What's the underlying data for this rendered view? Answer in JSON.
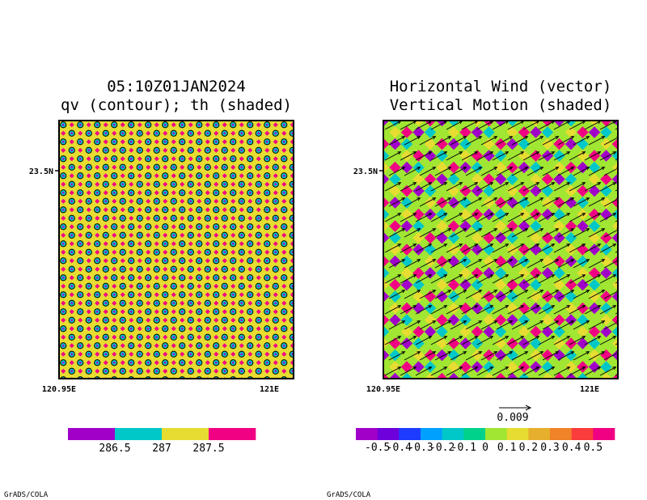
{
  "left_panel": {
    "title_line1": "05:10Z01JAN2024",
    "title_line2": "qv (contour); th (shaded)",
    "y_tick": "23.5N",
    "x_tick_left": "120.95E",
    "x_tick_right": "121E",
    "credit": "GrADS/COLA"
  },
  "right_panel": {
    "title_line1": "Horizontal Wind (vector)",
    "title_line2": "Vertical Motion (shaded)",
    "y_tick": "23.5N",
    "x_tick_left": "120.95E",
    "x_tick_right": "121E",
    "vector_ref_label": "0.009",
    "credit": "GrADS/COLA"
  },
  "colors": {
    "th_fill": "#e6dc32",
    "th_cold": "#a000c8",
    "th_mid": "#00c8c8",
    "th_hot": "#f00082",
    "w_palette": [
      "#a000c8",
      "#6e00dc",
      "#1e3cff",
      "#00a0ff",
      "#00c8c8",
      "#00d28c",
      "#a0e632",
      "#e6dc32",
      "#e6af2d",
      "#f08228",
      "#fa3c3c",
      "#f00082"
    ]
  },
  "chart_data": [
    {
      "type": "heatmap",
      "description_fields": "shaded",
      "x_ticks": [
        "120.95E",
        "121E"
      ],
      "y_ticks": [
        "23.5N"
      ],
      "colorbar": {
        "colors": [
          "#a000c8",
          "#00c8c8",
          "#e6dc32",
          "#f00082"
        ],
        "labels": [
          "286.5",
          "287",
          "287.5"
        ]
      }
    },
    {
      "type": "heatmap",
      "x_ticks": [
        "120.95E",
        "121E"
      ],
      "y_ticks": [
        "23.5N"
      ],
      "vector_reference": "0.009",
      "colorbar": {
        "colors": [
          "#a000c8",
          "#6e00dc",
          "#1e3cff",
          "#00a0ff",
          "#00c8c8",
          "#00d28c",
          "#a0e632",
          "#e6dc32",
          "#e6af2d",
          "#f08228",
          "#fa3c3c",
          "#f00082"
        ],
        "labels": [
          "-0.5",
          "-0.4",
          "-0.3",
          "-0.2",
          "-0.1",
          "0",
          "0.1",
          "0.2",
          "0.3",
          "0.4",
          "0.5"
        ]
      }
    }
  ]
}
